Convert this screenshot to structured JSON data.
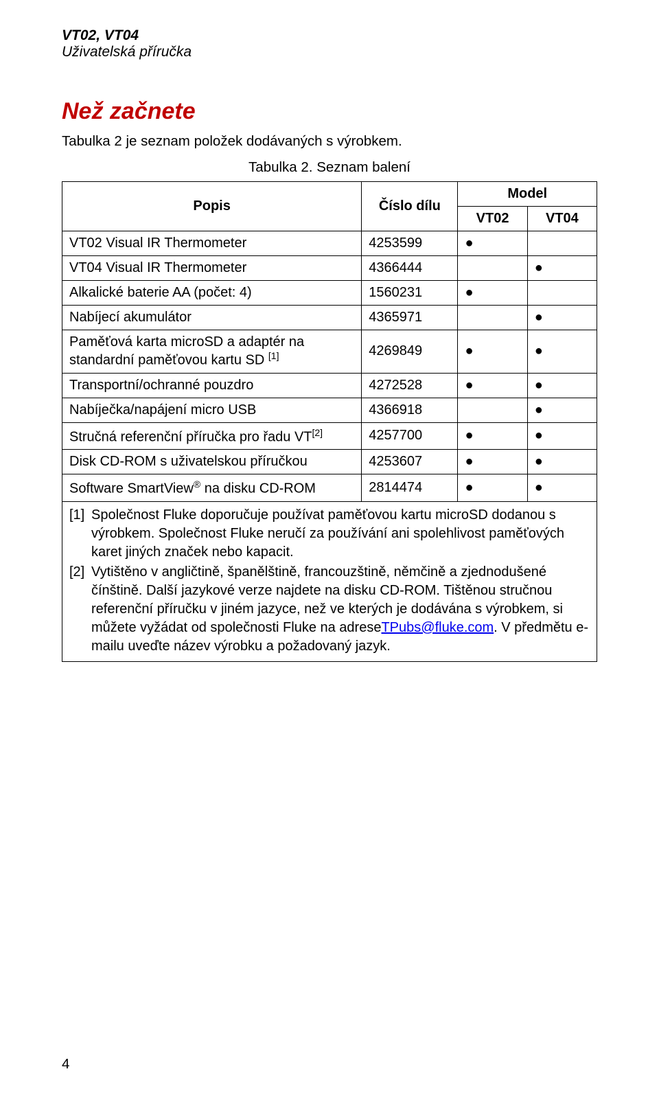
{
  "header": {
    "product": "VT02, VT04",
    "subtitle": "Uživatelská příručka"
  },
  "section": {
    "title": "Než začnete",
    "intro": "Tabulka 2 je seznam položek dodávaných s výrobkem.",
    "caption": "Tabulka 2. Seznam balení"
  },
  "table": {
    "headers": {
      "popis": "Popis",
      "cislo": "Číslo dílu",
      "model": "Model",
      "vt02": "VT02",
      "vt04": "VT04"
    },
    "rows": [
      {
        "desc": "VT02 Visual IR Thermometer",
        "part": "4253599",
        "vt02": "●",
        "vt04": ""
      },
      {
        "desc": "VT04 Visual IR Thermometer",
        "part": "4366444",
        "vt02": "",
        "vt04": "●"
      },
      {
        "desc": "Alkalické baterie AA (počet: 4)",
        "part": "1560231",
        "vt02": "●",
        "vt04": ""
      },
      {
        "desc": "Nabíjecí akumulátor",
        "part": "4365971",
        "vt02": "",
        "vt04": "●"
      },
      {
        "desc": "Paměťová karta microSD a adaptér na standardní paměťovou kartu SD ",
        "sup": "[1]",
        "part": "4269849",
        "vt02": "●",
        "vt04": "●"
      },
      {
        "desc": "Transportní/ochranné pouzdro",
        "part": "4272528",
        "vt02": "●",
        "vt04": "●"
      },
      {
        "desc": "Nabíječka/napájení micro USB",
        "part": "4366918",
        "vt02": "",
        "vt04": "●"
      },
      {
        "desc": "Stručná referenční příručka pro řadu VT",
        "sup": "[2]",
        "part": "4257700",
        "vt02": "●",
        "vt04": "●"
      },
      {
        "desc": "Disk CD-ROM s uživatelskou příručkou",
        "part": "4253607",
        "vt02": "●",
        "vt04": "●"
      },
      {
        "desc_pre": "Software SmartView",
        "reg": "®",
        "desc_post": " na disku CD-ROM",
        "part": "2814474",
        "vt02": "●",
        "vt04": "●"
      }
    ]
  },
  "footnotes": {
    "fn1_num": "[1]",
    "fn1_text": "Společnost Fluke doporučuje používat paměťovou kartu microSD dodanou s výrobkem. Společnost Fluke neručí za používání ani spolehlivost paměťových karet jiných značek nebo kapacit.",
    "fn2_num": "[2]",
    "fn2_text_a": "Vytištěno v angličtině, španělštině, francouzštině, němčině a zjednodušené čínštině. Další jazykové verze najdete na disku CD-ROM. Tištěnou stručnou referenční příručku v jiném jazyce, než ve kterých je dodávána s výrobkem, si můžete vyžádat od společnosti Fluke na adrese",
    "fn2_link": "TPubs@fluke.com",
    "fn2_text_b": ". V předmětu e-mailu uveďte název výrobku a požadovaný jazyk."
  },
  "page_number": "4"
}
